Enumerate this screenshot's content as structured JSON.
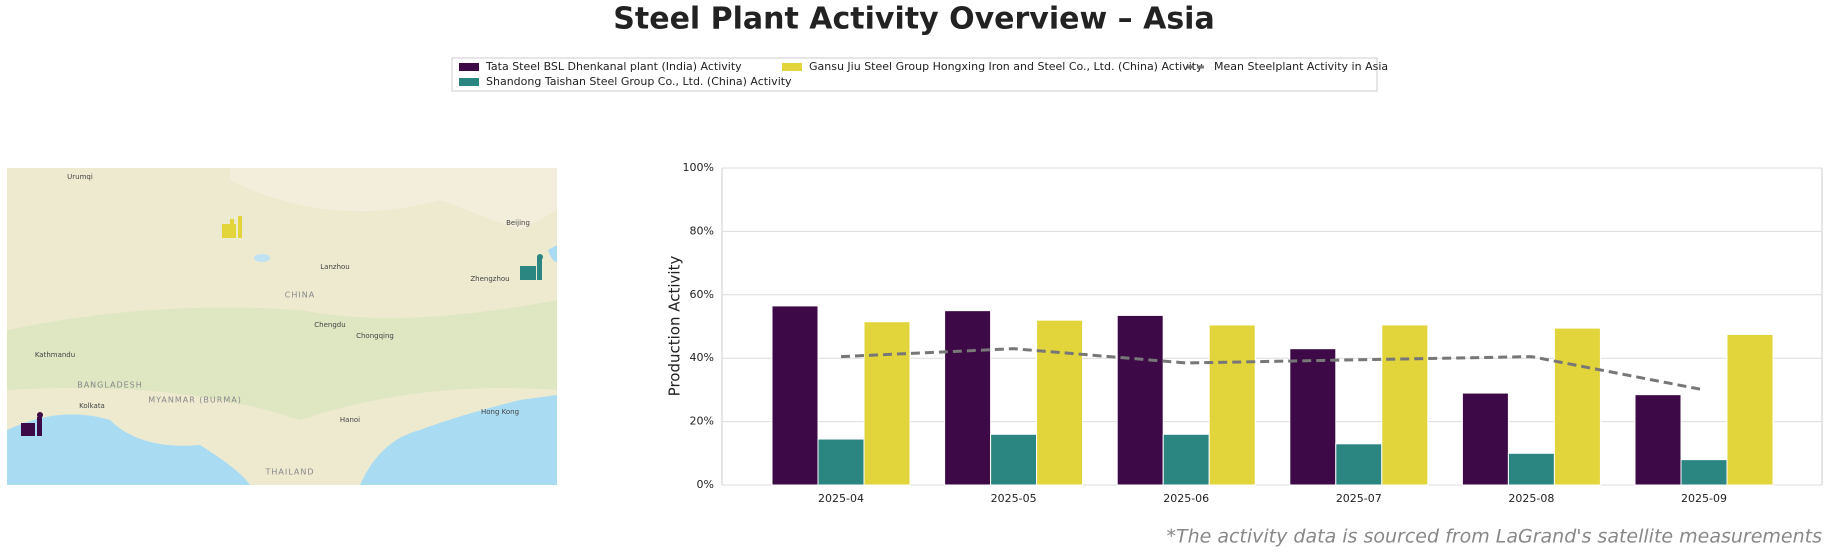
{
  "chart_data": {
    "type": "bar",
    "title": "Steel Plant Activity Overview – Asia",
    "y_label": "Production Activity",
    "footnote": "*The activity data is sourced from LaGrand's satellite measurements",
    "categories": [
      "2025-04",
      "2025-05",
      "2025-06",
      "2025-07",
      "2025-08",
      "2025-09"
    ],
    "series": [
      {
        "name": "Tata Steel BSL Dhenkanal plant (India) Activity",
        "color": "#3d0a47",
        "type": "bar",
        "values": [
          56.5,
          55,
          53.5,
          43,
          29,
          28.5
        ]
      },
      {
        "name": "Shandong Taishan Steel Group Co., Ltd. (China) Activity",
        "color": "#2b8580",
        "type": "bar",
        "values": [
          14.5,
          16,
          16,
          13,
          10,
          8
        ]
      },
      {
        "name": "Gansu Jiu Steel Group Hongxing Iron and Steel Co., Ltd. (China) Activity",
        "color": "#e2d43b",
        "type": "bar",
        "values": [
          51.5,
          52,
          50.5,
          50.5,
          49.5,
          47.5
        ]
      },
      {
        "name": "Mean Steelplant Activity in Asia",
        "color": "#777777",
        "type": "line",
        "dashed": true,
        "values": [
          40.5,
          43,
          38.5,
          39.5,
          40.5,
          30
        ]
      }
    ],
    "ylim": [
      0,
      100
    ],
    "yticks": [
      {
        "value": 0,
        "label": "0%"
      },
      {
        "value": 20,
        "label": "20%"
      },
      {
        "value": 40,
        "label": "40%"
      },
      {
        "value": 60,
        "label": "60%"
      },
      {
        "value": 80,
        "label": "80%"
      },
      {
        "value": 100,
        "label": "100%"
      }
    ],
    "grid": true,
    "legend": "upper center"
  },
  "map": {
    "labels": [
      "Urumqi",
      "Lanzhou",
      "CHINA",
      "Chengdu",
      "Chongqing",
      "Zhengzhou",
      "Beijing",
      "Kathmandu",
      "Kolkata",
      "BANGLADESH",
      "MYANMAR (BURMA)",
      "Hanoi",
      "Hong Kong",
      "THAILAND"
    ]
  }
}
